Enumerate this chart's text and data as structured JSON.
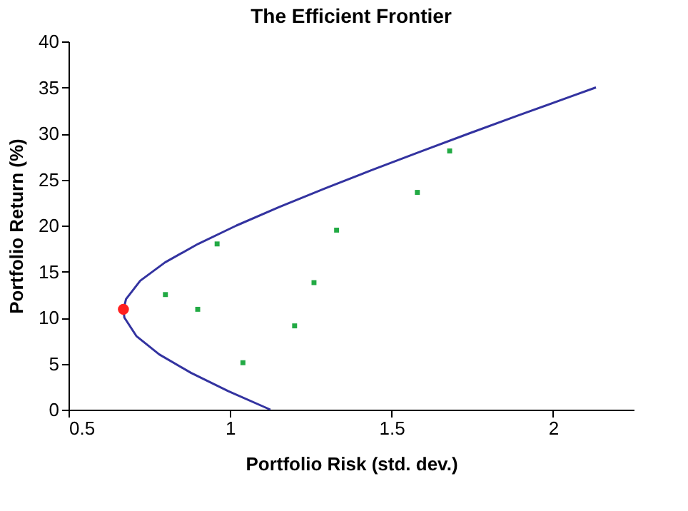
{
  "chart_data": {
    "type": "scatter",
    "title": "The Efficient Frontier",
    "xlabel": "Portfolio Risk (std. dev.)",
    "ylabel": "Portfolio Return (%)",
    "xlim": [
      0.5,
      2.25
    ],
    "xticks": [
      0.5,
      1,
      1.5,
      2
    ],
    "ylim": [
      0,
      40
    ],
    "yticks": [
      0,
      5,
      10,
      15,
      20,
      25,
      30,
      35,
      40
    ],
    "grid": false,
    "series": [
      {
        "type": "line",
        "color": "#3333a0",
        "marker": "none",
        "line_style": "solid",
        "x": [
          1.125,
          0.995,
          0.879,
          0.781,
          0.71,
          0.673,
          0.67,
          0.678,
          0.722,
          0.799,
          0.901,
          1.02,
          1.152,
          1.292,
          1.437,
          1.587,
          1.74,
          1.896,
          2.054,
          2.133
        ],
        "values": [
          0,
          2,
          4,
          6,
          8,
          10,
          10.8,
          12,
          14,
          16,
          18,
          20,
          22,
          24,
          26,
          28,
          30,
          32,
          34,
          35
        ]
      },
      {
        "color": "#22aa44",
        "marker": "square",
        "x": [
          0.8,
          0.9,
          0.96,
          1.04,
          1.2,
          1.26,
          1.33,
          1.58,
          1.68
        ],
        "values": [
          12.5,
          10.9,
          18,
          5.1,
          9.1,
          13.8,
          19.5,
          23.6,
          28.1
        ]
      },
      {
        "color": "#ff2020",
        "marker": "circle",
        "x": [
          0.67
        ],
        "values": [
          10.9
        ]
      }
    ]
  }
}
